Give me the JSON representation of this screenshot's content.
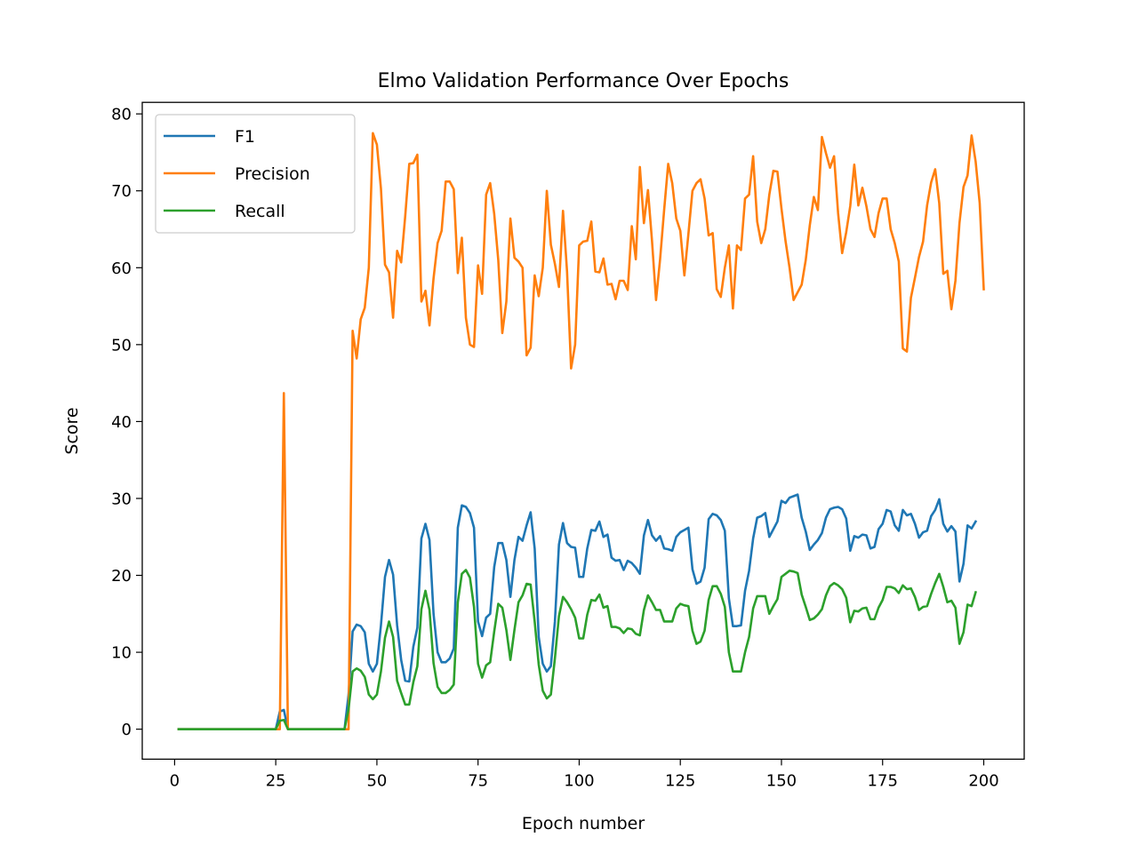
{
  "chart_data": {
    "type": "line",
    "title": "Elmo Validation Performance Over Epochs",
    "xlabel": "Epoch number",
    "ylabel": "Score",
    "xlim": [
      -8,
      210
    ],
    "ylim": [
      -3.9,
      81.5
    ],
    "xticks": [
      0,
      25,
      50,
      75,
      100,
      125,
      150,
      175,
      200
    ],
    "yticks": [
      0,
      10,
      20,
      30,
      40,
      50,
      60,
      70,
      80
    ],
    "grid": false,
    "legend_position": "upper-left",
    "series": [
      {
        "name": "F1",
        "color": "#1f77b4",
        "values": [
          0,
          0,
          0,
          0,
          0,
          0,
          0,
          0,
          0,
          0,
          0,
          0,
          0,
          0,
          0,
          0,
          0,
          0,
          0,
          0,
          0,
          0,
          0,
          0,
          0,
          2.3,
          2.5,
          0,
          0,
          0,
          0,
          0,
          0,
          0,
          0,
          0,
          0,
          0,
          0,
          0,
          0,
          0,
          4.5,
          12.7,
          13.6,
          13.4,
          12.6,
          8.5,
          7.5,
          8.5,
          13.5,
          19.8,
          22,
          20.1,
          13.5,
          9,
          6.3,
          6.2,
          10.7,
          13.2,
          24.8,
          26.7,
          24.6,
          15,
          10,
          8.7,
          8.7,
          9.2,
          10.5,
          26.2,
          29.1,
          28.9,
          28.1,
          26.2,
          14,
          12.1,
          14.5,
          15,
          21.1,
          24.2,
          24.2,
          22,
          17.2,
          22,
          25,
          24.5,
          26.5,
          28.2,
          23.5,
          12,
          8.5,
          7.5,
          8.2,
          14,
          24,
          26.8,
          24.2,
          23.7,
          23.6,
          19.8,
          19.8,
          23.5,
          25.9,
          25.8,
          27,
          25,
          25.3,
          22.3,
          21.9,
          22,
          20.7,
          21.9,
          21.6,
          21,
          20.2,
          25.2,
          27.2,
          25.2,
          24.5,
          25.1,
          23.5,
          23.4,
          23.2,
          25,
          25.6,
          25.9,
          26.2,
          20.8,
          18.9,
          19.2,
          21,
          27.3,
          28,
          27.8,
          27.2,
          25.8,
          17,
          13.4,
          13.4,
          13.5,
          18,
          20.6,
          24.8,
          27.5,
          27.7,
          28.1,
          25,
          26,
          27,
          29.7,
          29.4,
          30.1,
          30.3,
          30.5,
          27.5,
          25.7,
          23.3,
          24,
          24.6,
          25.5,
          27.5,
          28.6,
          28.8,
          28.9,
          28.6,
          27.4,
          23.2,
          25.1,
          24.9,
          25.3,
          25.2,
          23.5,
          23.7,
          26,
          26.7,
          28.5,
          28.3,
          26.5,
          25.8,
          28.5,
          27.8,
          28,
          26.7,
          24.9,
          25.6,
          25.8,
          27.7,
          28.5,
          29.9,
          26.7,
          25.7,
          26.4,
          25.7,
          19.2,
          21.5,
          26.5,
          26.1,
          27
        ]
      },
      {
        "name": "Precision",
        "color": "#ff7f0e",
        "values": [
          0,
          0,
          0,
          0,
          0,
          0,
          0,
          0,
          0,
          0,
          0,
          0,
          0,
          0,
          0,
          0,
          0,
          0,
          0,
          0,
          0,
          0,
          0,
          0,
          0,
          0,
          43.7,
          0,
          0,
          0,
          0,
          0,
          0,
          0,
          0,
          0,
          0,
          0,
          0,
          0,
          0,
          0,
          0,
          51.8,
          48.2,
          53.3,
          54.8,
          60,
          77.5,
          76,
          70.3,
          60.4,
          59.4,
          53.5,
          62.2,
          60.7,
          66.7,
          73.5,
          73.6,
          74.7,
          55.6,
          57,
          52.5,
          58.6,
          63.2,
          64.8,
          71.2,
          71.2,
          70.2,
          59.3,
          63.9,
          53.5,
          50,
          49.7,
          60.3,
          56.6,
          69.5,
          71,
          67,
          61,
          51.5,
          55.6,
          66.4,
          61.3,
          60.8,
          60,
          48.6,
          49.6,
          59,
          56.3,
          60,
          70,
          63,
          60.5,
          57.5,
          67.4,
          59.5,
          46.9,
          50,
          62.9,
          63.4,
          63.5,
          66,
          59.5,
          59.4,
          61.2,
          57.8,
          57.9,
          55.9,
          58.3,
          58.3,
          57.1,
          65.4,
          61.1,
          73.1,
          65.8,
          70.1,
          63.5,
          55.8,
          61.1,
          67.5,
          73.5,
          71,
          66.4,
          64.8,
          59,
          64.4,
          70,
          71,
          71.5,
          69,
          64.2,
          64.5,
          57.2,
          56.2,
          60,
          62.9,
          54.7,
          62.9,
          62.3,
          69,
          69.5,
          74.5,
          66,
          63.2,
          65,
          69.5,
          72.6,
          72.5,
          67.7,
          63.5,
          60,
          55.8,
          56.8,
          57.8,
          61,
          65.5,
          69.2,
          67.5,
          77,
          74.9,
          73,
          74.5,
          67.1,
          61.9,
          64.6,
          68,
          73.4,
          68.1,
          70.4,
          68,
          65,
          64,
          67.1,
          69,
          69,
          65,
          63.2,
          60.8,
          49.5,
          49.1,
          56.1,
          58.7,
          61.4,
          63.4,
          68.1,
          71.1,
          72.8,
          68.4,
          59.2,
          59.6,
          54.6,
          58.3,
          65.8,
          70.5,
          72,
          77.2,
          73.8,
          68.4,
          57.2
        ]
      },
      {
        "name": "Recall",
        "color": "#2ca02c",
        "values": [
          0,
          0,
          0,
          0,
          0,
          0,
          0,
          0,
          0,
          0,
          0,
          0,
          0,
          0,
          0,
          0,
          0,
          0,
          0,
          0,
          0,
          0,
          0,
          0,
          0,
          1.1,
          1.2,
          0,
          0,
          0,
          0,
          0,
          0,
          0,
          0,
          0,
          0,
          0,
          0,
          0,
          0,
          0,
          2.6,
          7.5,
          7.9,
          7.6,
          6.8,
          4.5,
          3.9,
          4.5,
          7.5,
          11.9,
          14,
          12,
          6.3,
          4.7,
          3.2,
          3.2,
          6.1,
          8.2,
          15.6,
          18,
          15.5,
          8.6,
          5.5,
          4.7,
          4.7,
          5.1,
          5.8,
          16.5,
          20.2,
          20.7,
          19.7,
          15.9,
          8.5,
          6.7,
          8.3,
          8.7,
          12.7,
          16.3,
          15.8,
          12.9,
          9,
          12.9,
          16.5,
          17.4,
          18.9,
          18.8,
          14,
          8.4,
          5,
          4,
          4.5,
          9.2,
          14.7,
          17.2,
          16.5,
          15.6,
          14.5,
          11.8,
          11.8,
          14.9,
          16.8,
          16.7,
          17.5,
          15.8,
          16,
          13.3,
          13.3,
          13.1,
          12.5,
          13.1,
          13,
          12.4,
          12.2,
          15.5,
          17.4,
          16.5,
          15.5,
          15.5,
          14,
          14,
          14,
          15.7,
          16.3,
          16.1,
          16,
          12.8,
          11.1,
          11.4,
          12.8,
          16.8,
          18.6,
          18.6,
          17.6,
          15.9,
          10,
          7.5,
          7.5,
          7.5,
          10,
          12,
          15.7,
          17.3,
          17.3,
          17.3,
          15,
          16,
          16.9,
          19.8,
          20.2,
          20.6,
          20.5,
          20.3,
          17.5,
          15.9,
          14.2,
          14.4,
          14.9,
          15.6,
          17.4,
          18.6,
          19,
          18.7,
          18.2,
          17.1,
          13.9,
          15.4,
          15.3,
          15.7,
          15.8,
          14.3,
          14.3,
          15.8,
          16.8,
          18.5,
          18.5,
          18.3,
          17.7,
          18.7,
          18.2,
          18.3,
          17.2,
          15.5,
          15.9,
          16,
          17.6,
          19,
          20.2,
          18.5,
          16.5,
          16.7,
          15.8,
          11.1,
          12.6,
          16.2,
          16,
          17.8
        ]
      }
    ]
  }
}
